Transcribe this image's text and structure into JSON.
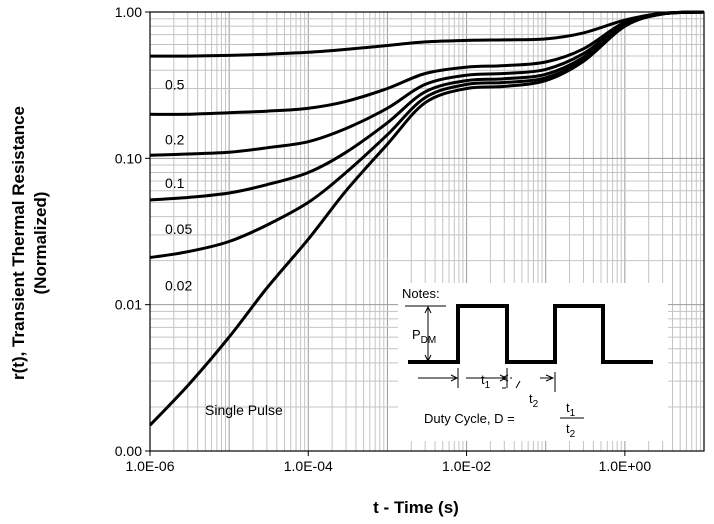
{
  "chart_data": {
    "type": "line",
    "title": "",
    "xlabel": "t - Time (s)",
    "ylabel_line1": "r(t), Transient Thermal Resistance",
    "ylabel_line2": "(Normalized)",
    "x_scale": "log",
    "y_scale": "log",
    "xlim": [
      1e-06,
      10
    ],
    "ylim": [
      0.001,
      1.0
    ],
    "grid": true,
    "x_ticks": [
      {
        "value": 1e-06,
        "label": "1.0E-06"
      },
      {
        "value": 0.0001,
        "label": "1.0E-04"
      },
      {
        "value": 0.01,
        "label": "1.0E-02"
      },
      {
        "value": 1,
        "label": "1.0E+00"
      }
    ],
    "y_ticks": [
      {
        "value": 0.001,
        "label": "0.00"
      },
      {
        "value": 0.01,
        "label": "0.01"
      },
      {
        "value": 0.1,
        "label": "0.10"
      },
      {
        "value": 1.0,
        "label": "1.00"
      }
    ],
    "x": [
      1e-06,
      3e-06,
      1e-05,
      3e-05,
      0.0001,
      0.0003,
      0.001,
      0.003,
      0.01,
      0.03,
      0.1,
      0.3,
      1,
      3,
      10
    ],
    "series": [
      {
        "name": "0.5",
        "values": [
          0.5,
          0.5,
          0.505,
          0.515,
          0.53,
          0.555,
          0.59,
          0.625,
          0.64,
          0.645,
          0.655,
          0.72,
          0.88,
          0.98,
          1.0
        ]
      },
      {
        "name": "0.2",
        "values": [
          0.2,
          0.2,
          0.205,
          0.21,
          0.22,
          0.245,
          0.3,
          0.38,
          0.42,
          0.43,
          0.455,
          0.56,
          0.85,
          0.975,
          1.0
        ]
      },
      {
        "name": "0.1",
        "values": [
          0.105,
          0.107,
          0.11,
          0.118,
          0.13,
          0.16,
          0.22,
          0.32,
          0.37,
          0.38,
          0.405,
          0.52,
          0.83,
          0.97,
          1.0
        ]
      },
      {
        "name": "0.05",
        "values": [
          0.052,
          0.054,
          0.058,
          0.066,
          0.08,
          0.11,
          0.175,
          0.285,
          0.34,
          0.35,
          0.375,
          0.49,
          0.82,
          0.97,
          1.0
        ]
      },
      {
        "name": "0.02",
        "values": [
          0.021,
          0.023,
          0.027,
          0.035,
          0.05,
          0.08,
          0.145,
          0.26,
          0.32,
          0.33,
          0.355,
          0.47,
          0.81,
          0.97,
          1.0
        ]
      },
      {
        "name": "Single Pulse",
        "values": [
          0.0015,
          0.0028,
          0.006,
          0.013,
          0.028,
          0.06,
          0.125,
          0.24,
          0.3,
          0.31,
          0.34,
          0.46,
          0.8,
          0.97,
          1.0
        ]
      }
    ],
    "inset": {
      "notes": "Notes:",
      "pdm_main": "P",
      "pdm_sub": "DM",
      "t1_main": "t",
      "t1_sub": "1",
      "t2_main": "t",
      "t2_sub": "2",
      "duty_text": "Duty Cycle, D =",
      "frac_num_main": "t",
      "frac_num_sub": "1",
      "frac_den_main": "t",
      "frac_den_sub": "2"
    }
  }
}
